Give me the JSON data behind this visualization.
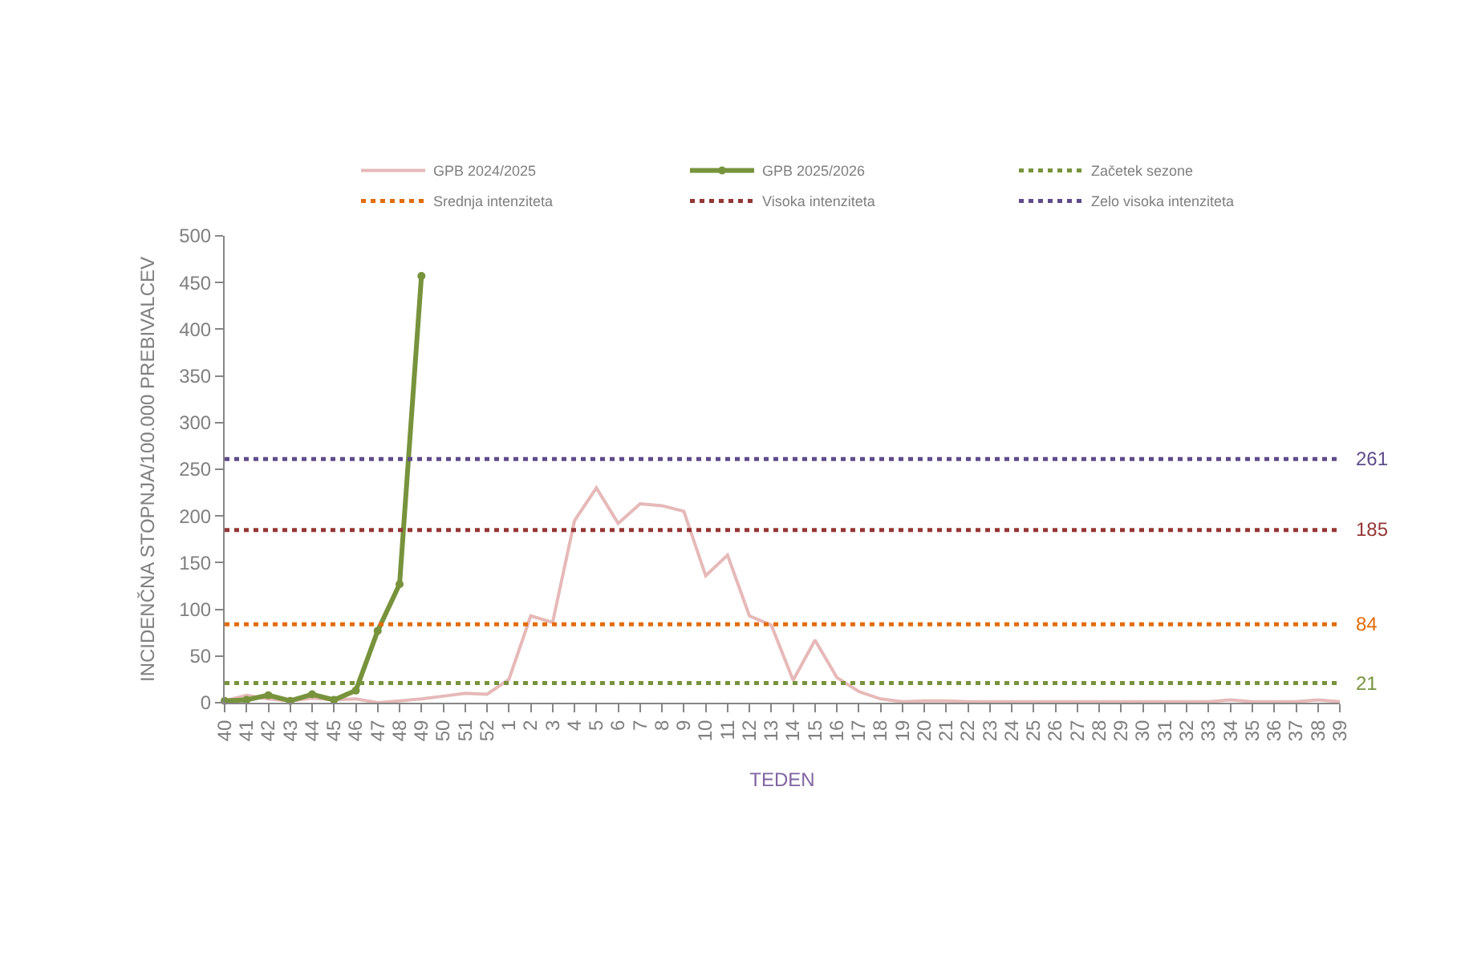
{
  "chart_data": {
    "type": "line",
    "xlabel": "TEDEN",
    "ylabel": "INCIDENČNA STOPNJA/100.000 PREBIVALCEV",
    "categories": [
      "40",
      "41",
      "42",
      "43",
      "44",
      "45",
      "46",
      "47",
      "48",
      "49",
      "50",
      "51",
      "52",
      "1",
      "2",
      "3",
      "4",
      "5",
      "6",
      "7",
      "8",
      "9",
      "10",
      "11",
      "12",
      "13",
      "14",
      "15",
      "16",
      "17",
      "18",
      "19",
      "20",
      "21",
      "22",
      "23",
      "24",
      "25",
      "26",
      "27",
      "28",
      "29",
      "30",
      "31",
      "32",
      "33",
      "34",
      "35",
      "36",
      "37",
      "38",
      "39"
    ],
    "series": [
      {
        "name": "GPB 2024/2025",
        "color": "#e6b9b8",
        "marker": "none",
        "values": [
          2,
          8,
          4,
          2,
          5,
          3,
          4,
          0,
          2,
          4,
          7,
          10,
          9,
          25,
          93,
          86,
          195,
          230,
          192,
          213,
          211,
          205,
          136,
          158,
          93,
          83,
          24,
          67,
          27,
          12,
          4,
          1,
          2,
          2,
          1,
          1,
          1,
          1,
          1,
          1,
          1,
          1,
          1,
          1,
          1,
          1,
          3,
          1,
          1,
          1,
          3,
          1
        ]
      },
      {
        "name": "GPB 2025/2026",
        "color": "#77933c",
        "marker": "circle",
        "values": [
          2,
          3,
          8,
          2,
          9,
          3,
          13,
          77,
          127,
          457,
          null,
          null,
          null,
          null,
          null,
          null,
          null,
          null,
          null,
          null,
          null,
          null,
          null,
          null,
          null,
          null,
          null,
          null,
          null,
          null,
          null,
          null,
          null,
          null,
          null,
          null,
          null,
          null,
          null,
          null,
          null,
          null,
          null,
          null,
          null,
          null,
          null,
          null,
          null,
          null,
          null,
          null
        ]
      }
    ],
    "ref_lines": [
      {
        "axis": "y",
        "value": 21,
        "label": "Začetek sezone",
        "color": "#77933c",
        "line_style": "dotted"
      },
      {
        "axis": "y",
        "value": 84,
        "label": "Srednja intenziteta",
        "color": "#e36c0a",
        "line_style": "dotted"
      },
      {
        "axis": "y",
        "value": 185,
        "label": "Visoka intenziteta",
        "color": "#953735",
        "line_style": "dotted"
      },
      {
        "axis": "y",
        "value": 261,
        "label": "Zelo visoka intenziteta",
        "color": "#5f4b8b",
        "line_style": "dotted"
      }
    ],
    "annotations": [
      {
        "text": "261",
        "x": "39",
        "y": 261
      },
      {
        "text": "185",
        "x": "39",
        "y": 185
      },
      {
        "text": "84",
        "x": "39",
        "y": 84
      },
      {
        "text": "21",
        "x": "39",
        "y": 21
      }
    ],
    "ylim": [
      0,
      500
    ],
    "yticks": [
      0,
      50,
      100,
      150,
      200,
      250,
      300,
      350,
      400,
      450,
      500
    ],
    "grid": false,
    "legend": "top right"
  }
}
